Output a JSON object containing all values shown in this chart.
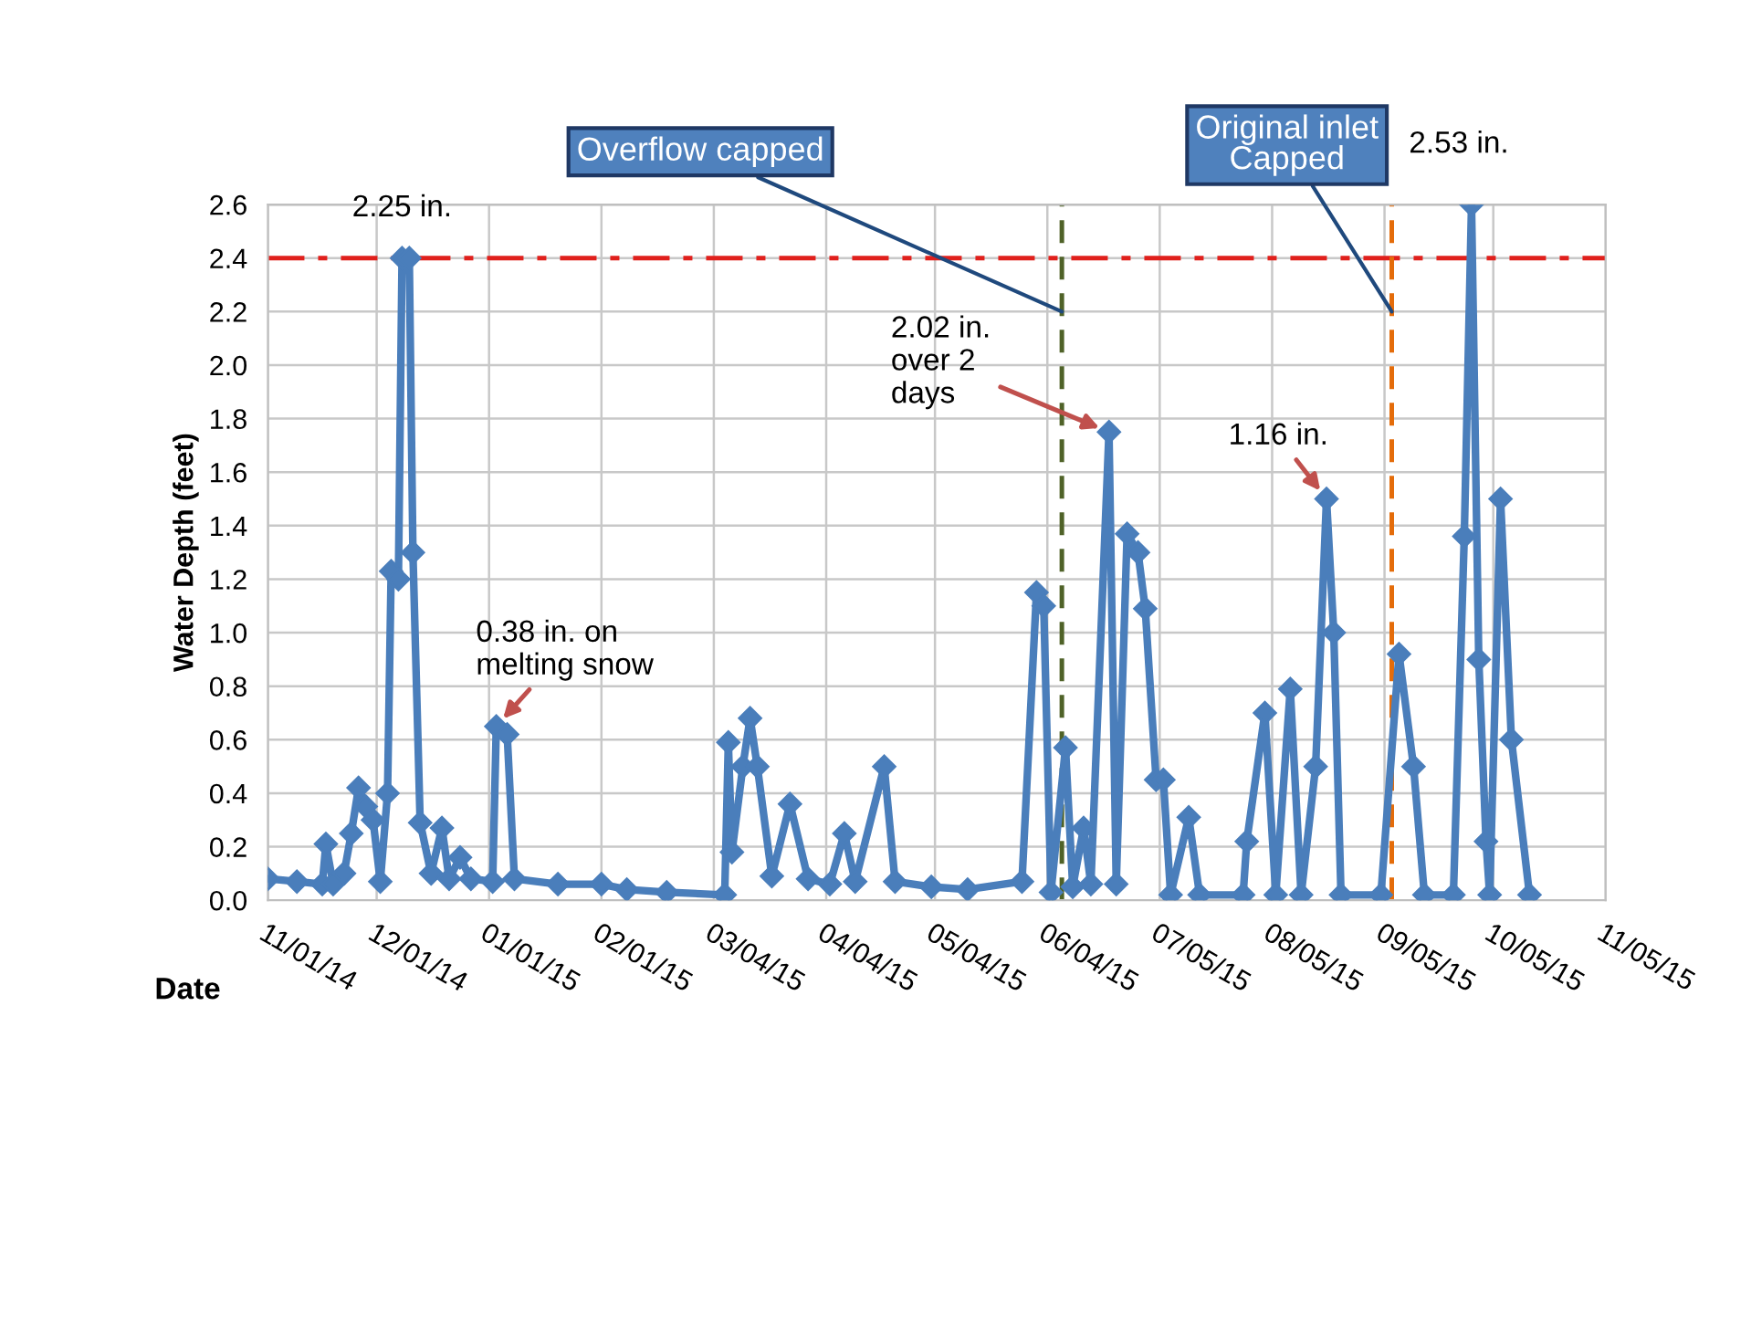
{
  "chart_data": {
    "type": "line",
    "ylabel": "Water Depth (feet)",
    "xlabel": "Date",
    "x": [
      "2014-11-01",
      "2014-11-09",
      "2014-11-16",
      "2014-11-17",
      "2014-11-19",
      "2014-11-22",
      "2014-11-24",
      "2014-11-26",
      "2014-11-28",
      "2014-11-30",
      "2014-12-02",
      "2014-12-04",
      "2014-12-05",
      "2014-12-07",
      "2014-12-08",
      "2014-12-10",
      "2014-12-11",
      "2014-12-13",
      "2014-12-16",
      "2014-12-19",
      "2014-12-21",
      "2014-12-24",
      "2014-12-27",
      "2015-01-02",
      "2015-01-03",
      "2015-01-06",
      "2015-01-08",
      "2015-01-20",
      "2015-02-01",
      "2015-02-08",
      "2015-02-19",
      "2015-03-07",
      "2015-03-08",
      "2015-03-09",
      "2015-03-12",
      "2015-03-14",
      "2015-03-16",
      "2015-03-20",
      "2015-03-25",
      "2015-03-30",
      "2015-04-05",
      "2015-04-09",
      "2015-04-12",
      "2015-04-20",
      "2015-04-23",
      "2015-05-03",
      "2015-05-13",
      "2015-05-28",
      "2015-06-01",
      "2015-06-03",
      "2015-06-05",
      "2015-06-09",
      "2015-06-11",
      "2015-06-14",
      "2015-06-16",
      "2015-06-21",
      "2015-06-23",
      "2015-06-26",
      "2015-06-29",
      "2015-07-01",
      "2015-07-04",
      "2015-07-06",
      "2015-07-08",
      "2015-07-13",
      "2015-07-16",
      "2015-07-28",
      "2015-07-29",
      "2015-08-03",
      "2015-08-06",
      "2015-08-10",
      "2015-08-13",
      "2015-08-17",
      "2015-08-20",
      "2015-08-22",
      "2015-08-24",
      "2015-09-04",
      "2015-09-09",
      "2015-09-13",
      "2015-09-16",
      "2015-09-24",
      "2015-09-27",
      "2015-09-29",
      "2015-10-01",
      "2015-10-03",
      "2015-10-04",
      "2015-10-07",
      "2015-10-10",
      "2015-10-15"
    ],
    "series": [
      {
        "color": "#4a7ebb",
        "values": [
          0.08,
          0.07,
          0.06,
          0.21,
          0.06,
          0.1,
          0.25,
          0.42,
          0.35,
          0.3,
          0.07,
          0.4,
          1.23,
          1.2,
          2.4,
          2.4,
          1.3,
          0.29,
          0.1,
          0.27,
          0.08,
          0.16,
          0.08,
          0.07,
          0.65,
          0.62,
          0.08,
          0.06,
          0.06,
          0.04,
          0.03,
          0.02,
          0.59,
          0.18,
          0.5,
          0.68,
          0.5,
          0.09,
          0.36,
          0.08,
          0.06,
          0.25,
          0.07,
          0.5,
          0.07,
          0.05,
          0.04,
          0.07,
          1.15,
          1.1,
          0.03,
          0.57,
          0.05,
          0.27,
          0.06,
          1.75,
          0.06,
          1.37,
          1.3,
          1.09,
          0.45,
          0.45,
          0.02,
          0.31,
          0.02,
          0.02,
          0.22,
          0.7,
          0.02,
          0.79,
          0.02,
          0.5,
          1.5,
          1.0,
          0.02,
          0.02,
          0.92,
          0.5,
          0.02,
          0.02,
          1.36,
          2.6,
          0.9,
          0.22,
          0.02,
          1.5,
          0.6,
          0.02
        ]
      }
    ],
    "marker": "diamond",
    "line_style": "solid",
    "xlim": [
      "2014-11-01",
      "2015-11-05"
    ],
    "xticks": [
      {
        "value": "2014-11-01",
        "label": "11/01/14"
      },
      {
        "value": "2014-12-01",
        "label": "12/01/14"
      },
      {
        "value": "2015-01-01",
        "label": "01/01/15"
      },
      {
        "value": "2015-02-01",
        "label": "02/01/15"
      },
      {
        "value": "2015-03-04",
        "label": "03/04/15"
      },
      {
        "value": "2015-04-04",
        "label": "04/04/15"
      },
      {
        "value": "2015-05-04",
        "label": "05/04/15"
      },
      {
        "value": "2015-06-04",
        "label": "06/04/15"
      },
      {
        "value": "2015-07-05",
        "label": "07/05/15"
      },
      {
        "value": "2015-08-05",
        "label": "08/05/15"
      },
      {
        "value": "2015-09-05",
        "label": "09/05/15"
      },
      {
        "value": "2015-10-05",
        "label": "10/05/15"
      },
      {
        "value": "2015-11-05",
        "label": "11/05/15"
      }
    ],
    "ylim": [
      0,
      2.6
    ],
    "yticks": [
      {
        "value": 0,
        "label": "0.0"
      },
      0.2,
      0.4,
      0.6,
      0.8,
      {
        "value": 1,
        "label": "1.0"
      },
      1.2,
      1.4,
      1.6,
      1.8,
      {
        "value": 2,
        "label": "2.0"
      },
      2.2,
      2.4,
      2.6
    ],
    "grid": true,
    "ref_lines": [
      {
        "axis": "y",
        "value": 2.4,
        "color": "#e0201c",
        "line_style": "dashdot"
      },
      {
        "axis": "x",
        "value": "2015-06-08",
        "label": "Overflow capped",
        "color": "#4f6228",
        "line_style": "dashed"
      },
      {
        "axis": "x",
        "value": "2015-09-07",
        "label": "Original inlet Capped",
        "color": "#e46c0a",
        "line_style": "dashed"
      }
    ],
    "annotations": [
      {
        "text": "2.25 in.",
        "x": "2014-12-08",
        "y": 2.4
      },
      {
        "text": "0.38 in. on melting snow",
        "x": "2015-01-03",
        "y": 0.65
      },
      {
        "text": "2.02 in. over 2 days",
        "x": "2015-06-21",
        "y": 1.75
      },
      {
        "text": "1.16 in.",
        "x": "2015-08-20",
        "y": 1.5
      },
      {
        "text": "2.53 in.",
        "x": "2015-09-29",
        "y": 2.6
      }
    ]
  }
}
